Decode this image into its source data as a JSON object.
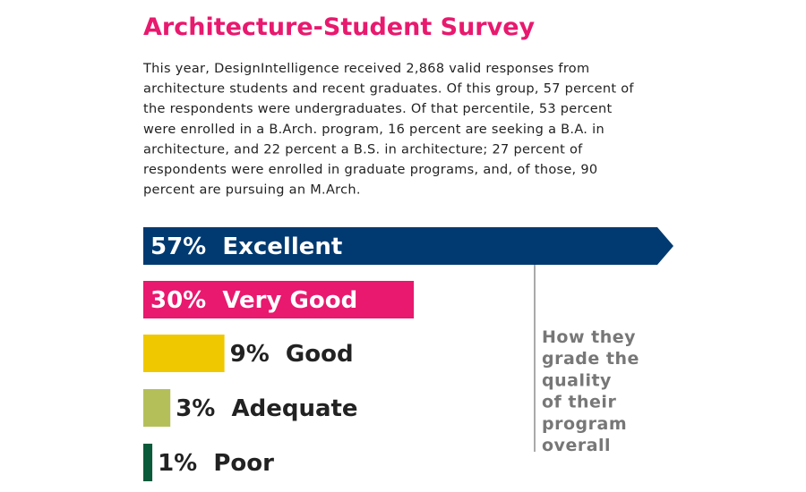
{
  "chart_data": {
    "type": "bar",
    "orientation": "horizontal",
    "title": "Architecture-Student Survey",
    "description": [
      "This year, DesignIntelligence received 2,868 valid responses from",
      "architecture students and recent graduates. Of this group, 57 percent of",
      "the respondents were undergraduates. Of that percentile, 53 percent",
      "were enrolled in a B.Arch. program, 16 percent are seeking a B.A. in",
      "architecture, and 22 percent a B.S. in architecture; 27 percent of",
      "respondents were enrolled in graduate programs, and, of those, 90",
      "percent are pursuing an M.Arch."
    ],
    "categories": [
      "Excellent",
      "Very Good",
      "Good",
      "Adequate",
      "Poor"
    ],
    "values": [
      57,
      30,
      9,
      3,
      1
    ],
    "value_labels": [
      "57%",
      "30%",
      "9%",
      "3%",
      "1%"
    ],
    "colors": [
      "#003a70",
      "#e8196e",
      "#f0c800",
      "#b5bf5a",
      "#0b5a3a"
    ],
    "annotation": [
      "How they",
      "grade the",
      "quality",
      "of their",
      "program",
      "overall"
    ]
  }
}
